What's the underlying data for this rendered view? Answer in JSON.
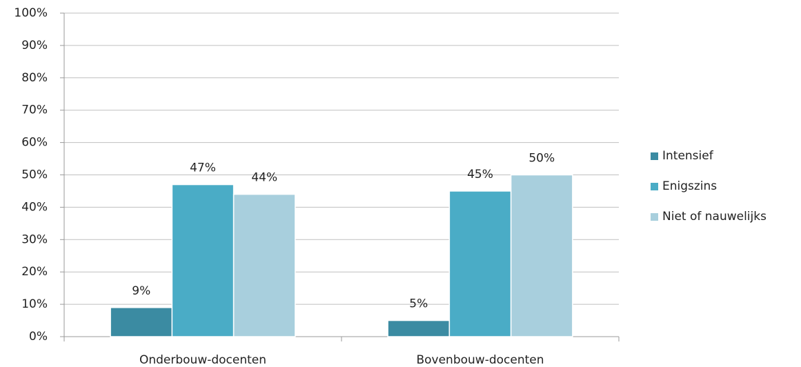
{
  "chart_data": {
    "type": "bar",
    "categories": [
      "Onderbouw-docenten",
      "Bovenbouw-docenten"
    ],
    "series": [
      {
        "name": "Intensief",
        "color": "#3b8ba2",
        "values": [
          9,
          5
        ],
        "value_labels": [
          "9%",
          "5%"
        ]
      },
      {
        "name": "Enigszins",
        "color": "#4aacc6",
        "values": [
          47,
          45
        ],
        "value_labels": [
          "47%",
          "45%"
        ]
      },
      {
        "name": "Niet of nauwelijks",
        "color": "#a8cfdd",
        "values": [
          44,
          50
        ],
        "value_labels": [
          "44%",
          "50%"
        ]
      }
    ],
    "ylim": [
      0,
      100
    ],
    "yticks": [
      {
        "value": 0,
        "label": "0%"
      },
      {
        "value": 10,
        "label": "10%"
      },
      {
        "value": 20,
        "label": "20%"
      },
      {
        "value": 30,
        "label": "30%"
      },
      {
        "value": 40,
        "label": "40%"
      },
      {
        "value": 50,
        "label": "50%"
      },
      {
        "value": 60,
        "label": "60%"
      },
      {
        "value": 70,
        "label": "70%"
      },
      {
        "value": 80,
        "label": "80%"
      },
      {
        "value": 90,
        "label": "90%"
      },
      {
        "value": 100,
        "label": "100%"
      }
    ],
    "grid": true,
    "legend": "right"
  }
}
